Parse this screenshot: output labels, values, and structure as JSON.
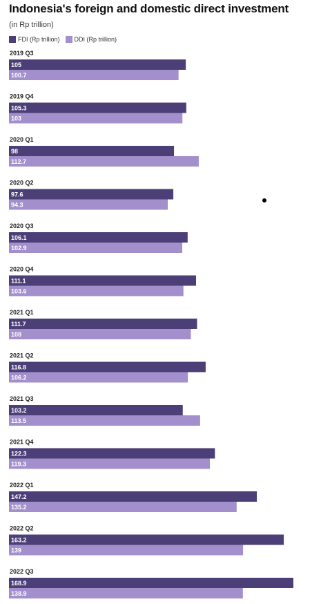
{
  "chart_data": {
    "type": "bar",
    "orientation": "horizontal",
    "title": "Indonesia's foreign and domestic direct investment",
    "subtitle": "(in Rp trillion)",
    "categories": [
      "2019 Q3",
      "2019 Q4",
      "2020 Q1",
      "2020 Q2",
      "2020 Q3",
      "2020 Q4",
      "2021 Q1",
      "2021 Q2",
      "2021 Q3",
      "2021 Q4",
      "2022 Q1",
      "2022 Q2",
      "2022 Q3"
    ],
    "series": [
      {
        "name": "FDI (Rp trillion)",
        "color": "#4c3f77",
        "values": [
          105,
          105.3,
          98,
          97.6,
          106.1,
          111.1,
          111.7,
          116.8,
          103.2,
          122.3,
          147.2,
          163.2,
          168.9
        ]
      },
      {
        "name": "DDI (Rp trillion)",
        "color": "#a28fcb",
        "values": [
          100.7,
          103,
          112.7,
          94.3,
          102.9,
          103.6,
          108,
          106.2,
          113.5,
          119.3,
          135.2,
          139,
          138.9
        ]
      }
    ],
    "xlim": [
      0,
      170
    ],
    "legend_position": "top-left",
    "grid": false
  }
}
